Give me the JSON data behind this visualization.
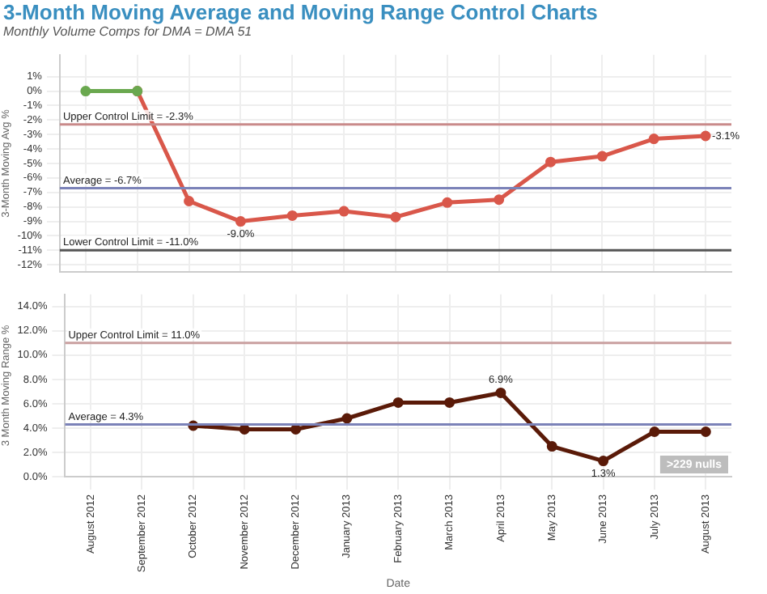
{
  "chart_data": [
    {
      "type": "line",
      "title": "3-Month Moving Average and Moving Range Control Charts",
      "subtitle": "Monthly Volume Comps for DMA = DMA 51",
      "ylabel": "3-Month Moving Avg %",
      "categories": [
        null,
        null,
        null,
        null,
        null,
        null,
        null,
        null,
        null,
        null,
        null,
        null,
        null
      ],
      "series": [
        {
          "color": "#6aa84f",
          "values": [
            0,
            0,
            null,
            null,
            null,
            null,
            null,
            null,
            null,
            null,
            null,
            null,
            null
          ]
        },
        {
          "color": "#d9574a",
          "values": [
            null,
            0,
            -7.6,
            -9.0,
            -8.6,
            -8.3,
            -8.7,
            -7.7,
            -7.5,
            -4.9,
            -4.5,
            -3.3,
            -3.1
          ],
          "value_labels": [
            null,
            null,
            null,
            "-9.0%",
            null,
            null,
            null,
            null,
            null,
            null,
            null,
            null,
            "-3.1%"
          ]
        }
      ],
      "ylim": [
        -12.5,
        2.5
      ],
      "yticks": [
        {
          "value": 1,
          "label": "1%"
        },
        {
          "value": 0,
          "label": "0%"
        },
        {
          "value": -1,
          "label": "-1%"
        },
        {
          "value": -2,
          "label": "-2%"
        },
        {
          "value": -3,
          "label": "-3%"
        },
        {
          "value": -4,
          "label": "-4%"
        },
        {
          "value": -5,
          "label": "-5%"
        },
        {
          "value": -6,
          "label": "-6%"
        },
        {
          "value": -7,
          "label": "-7%"
        },
        {
          "value": -8,
          "label": "-8%"
        },
        {
          "value": -9,
          "label": "-9%"
        },
        {
          "value": -10,
          "label": "-10%"
        },
        {
          "value": -11,
          "label": "-11%"
        },
        {
          "value": -12,
          "label": "-12%"
        }
      ],
      "ref_lines": [
        {
          "axis": "y",
          "value": -2.3,
          "label": "Upper Control Limit = -2.3%",
          "color": "#c98a8a"
        },
        {
          "axis": "y",
          "value": -6.7,
          "label": "Average = -6.7%",
          "color": "#7b82b8"
        },
        {
          "axis": "y",
          "value": -11.0,
          "label": "Lower Control Limit = -11.0%",
          "color": "#555555"
        }
      ],
      "grid": true,
      "marker": "circle",
      "tick_labels": "y"
    },
    {
      "type": "line",
      "ylabel": "3 Month Moving Range %",
      "xlabel": "Date",
      "categories": [
        "August 2012",
        "September 2012",
        "October 2012",
        "November 2012",
        "December 2012",
        "January 2013",
        "February 2013",
        "March 2013",
        "April 2013",
        "May 2013",
        "June 2013",
        "July 2013",
        "August 2013"
      ],
      "series": [
        {
          "color": "#5a1a08",
          "values": [
            null,
            null,
            4.2,
            3.9,
            3.9,
            4.8,
            6.1,
            6.1,
            6.9,
            2.5,
            1.3,
            3.7,
            3.7
          ],
          "value_labels": [
            null,
            null,
            null,
            null,
            null,
            null,
            null,
            null,
            "6.9%",
            null,
            "1.3%",
            null,
            null
          ]
        }
      ],
      "ylim": [
        0,
        15
      ],
      "yticks": [
        {
          "value": 0,
          "label": "0.0%"
        },
        {
          "value": 2,
          "label": "2.0%"
        },
        {
          "value": 4,
          "label": "4.0%"
        },
        {
          "value": 6,
          "label": "6.0%"
        },
        {
          "value": 8,
          "label": "8.0%"
        },
        {
          "value": 10,
          "label": "10.0%"
        },
        {
          "value": 12,
          "label": "12.0%"
        },
        {
          "value": 14,
          "label": "14.0%"
        }
      ],
      "ref_lines": [
        {
          "axis": "y",
          "value": 11.0,
          "label": "Upper Control Limit = 11.0%",
          "color": "#c9a0a0"
        },
        {
          "axis": "y",
          "value": 4.3,
          "label": "Average = 4.3%",
          "color": "#7b82b8"
        }
      ],
      "annotations": [
        ">229 nulls"
      ],
      "grid": true,
      "marker": "circle"
    }
  ]
}
